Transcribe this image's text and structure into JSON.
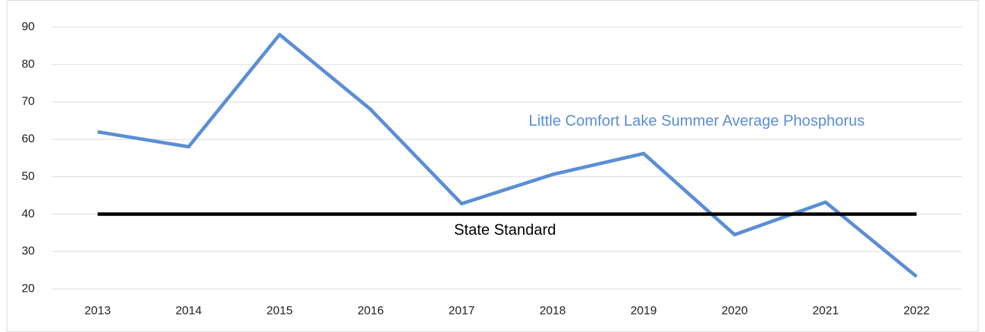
{
  "chart_data": {
    "type": "line",
    "categories": [
      "2013",
      "2014",
      "2015",
      "2016",
      "2017",
      "2018",
      "2019",
      "2020",
      "2021",
      "2022"
    ],
    "series": [
      {
        "name": "Little Comfort Lake Summer Average Phosphorus",
        "color": "#5b8ed6",
        "values": [
          62,
          58,
          88,
          68,
          42.8,
          50.6,
          56.2,
          34.5,
          43.2,
          23.3
        ]
      },
      {
        "name": "State Standard",
        "color": "#000000",
        "values": [
          40,
          40,
          40,
          40,
          40,
          40,
          40,
          40,
          40,
          40
        ]
      }
    ],
    "ylim": [
      20,
      90
    ],
    "yticks": [
      20,
      30,
      40,
      50,
      60,
      70,
      80,
      90
    ],
    "grid": true
  }
}
